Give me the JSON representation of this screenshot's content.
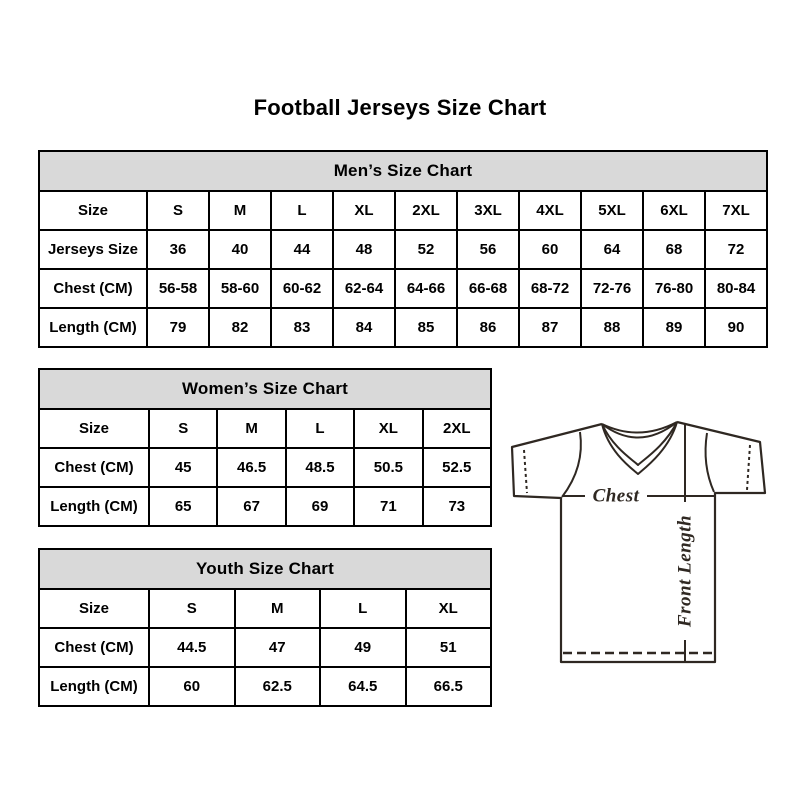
{
  "page": {
    "title": "Football Jerseys Size Chart"
  },
  "tables": {
    "men": {
      "header": "Men’s Size Chart",
      "rows": [
        [
          "Size",
          "S",
          "M",
          "L",
          "XL",
          "2XL",
          "3XL",
          "4XL",
          "5XL",
          "6XL",
          "7XL"
        ],
        [
          "Jerseys Size",
          "36",
          "40",
          "44",
          "48",
          "52",
          "56",
          "60",
          "64",
          "68",
          "72"
        ],
        [
          "Chest (CM)",
          "56-58",
          "58-60",
          "60-62",
          "62-64",
          "64-66",
          "66-68",
          "68-72",
          "72-76",
          "76-80",
          "80-84"
        ],
        [
          "Length (CM)",
          "79",
          "82",
          "83",
          "84",
          "85",
          "86",
          "87",
          "88",
          "89",
          "90"
        ]
      ]
    },
    "women": {
      "header": "Women’s Size Chart",
      "rows": [
        [
          "Size",
          "S",
          "M",
          "L",
          "XL",
          "2XL"
        ],
        [
          "Chest (CM)",
          "45",
          "46.5",
          "48.5",
          "50.5",
          "52.5"
        ],
        [
          "Length (CM)",
          "65",
          "67",
          "69",
          "71",
          "73"
        ]
      ]
    },
    "youth": {
      "header": "Youth Size Chart",
      "rows": [
        [
          "Size",
          "S",
          "M",
          "L",
          "XL"
        ],
        [
          "Chest (CM)",
          "44.5",
          "47",
          "49",
          "51"
        ],
        [
          "Length (CM)",
          "60",
          "62.5",
          "64.5",
          "66.5"
        ]
      ]
    }
  },
  "diagram": {
    "chest_label": "Chest",
    "front_length_label": "Front Length"
  },
  "colors": {
    "table_header_bg": "#d9d9d9",
    "table_border": "#000000",
    "jersey_ink": "#2f2822"
  }
}
